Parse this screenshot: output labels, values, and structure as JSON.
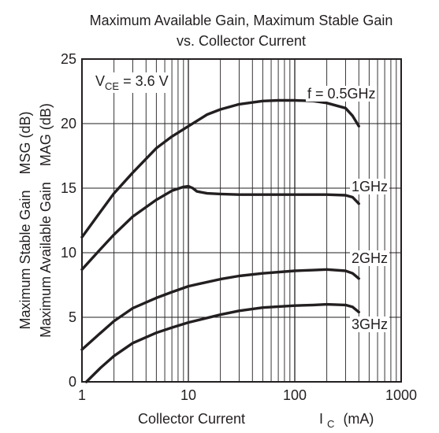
{
  "chart_data": {
    "type": "line",
    "title_line1": "Maximum Available Gain, Maximum Stable Gain",
    "title_line2": "vs. Collector Current",
    "xlabel_main": "Collector Current",
    "xlabel_symbol": "I",
    "xlabel_sub": "C",
    "xlabel_unit": "(mA)",
    "ylabel_outer": "Maximum Stable Gain    MSG (dB)",
    "ylabel_inner": "Maximum Available Gain    MAG (dB)",
    "x_scale": "log",
    "xlim": [
      1,
      1000
    ],
    "ylim": [
      0,
      25
    ],
    "x_ticks": [
      1,
      10,
      100,
      1000
    ],
    "x_tick_labels": [
      "1",
      "10",
      "100",
      "1000"
    ],
    "y_ticks": [
      0,
      5,
      10,
      15,
      20,
      25
    ],
    "y_tick_labels": [
      "0",
      "5",
      "10",
      "15",
      "20",
      "25"
    ],
    "grid": true,
    "condition": {
      "prefix": "V",
      "sub": "CE",
      "text": " = 3.6 V"
    },
    "series": [
      {
        "name": "f = 0.5GHz",
        "x": [
          1,
          1.5,
          2,
          3,
          5,
          7,
          10,
          15,
          20,
          30,
          50,
          70,
          100,
          150,
          200,
          300,
          350,
          400
        ],
        "y": [
          11.2,
          13.2,
          14.6,
          16.2,
          18.1,
          19.0,
          19.8,
          20.7,
          21.1,
          21.5,
          21.75,
          21.8,
          21.8,
          21.75,
          21.6,
          21.2,
          20.6,
          19.8
        ]
      },
      {
        "name": "1GHz",
        "x": [
          1,
          1.5,
          2,
          3,
          5,
          7,
          9,
          10,
          11,
          12,
          15,
          20,
          30,
          50,
          100,
          200,
          300,
          350,
          400
        ],
        "y": [
          8.7,
          10.3,
          11.4,
          12.8,
          14.1,
          14.8,
          15.1,
          15.15,
          15.0,
          14.75,
          14.6,
          14.55,
          14.5,
          14.5,
          14.5,
          14.5,
          14.45,
          14.3,
          13.8
        ]
      },
      {
        "name": "2GHz",
        "x": [
          1,
          1.5,
          2,
          3,
          5,
          7,
          10,
          20,
          30,
          50,
          100,
          150,
          200,
          300,
          350,
          400
        ],
        "y": [
          2.5,
          3.8,
          4.7,
          5.7,
          6.5,
          6.95,
          7.4,
          7.95,
          8.2,
          8.4,
          8.6,
          8.65,
          8.7,
          8.6,
          8.4,
          8.0
        ]
      },
      {
        "name": "3GHz",
        "x": [
          1.1,
          1.5,
          2,
          3,
          5,
          7,
          10,
          20,
          30,
          50,
          100,
          150,
          200,
          300,
          350,
          400
        ],
        "y": [
          0,
          1.1,
          2.0,
          3.0,
          3.8,
          4.2,
          4.6,
          5.2,
          5.5,
          5.75,
          5.9,
          5.95,
          6.0,
          5.95,
          5.8,
          5.4
        ]
      }
    ]
  }
}
